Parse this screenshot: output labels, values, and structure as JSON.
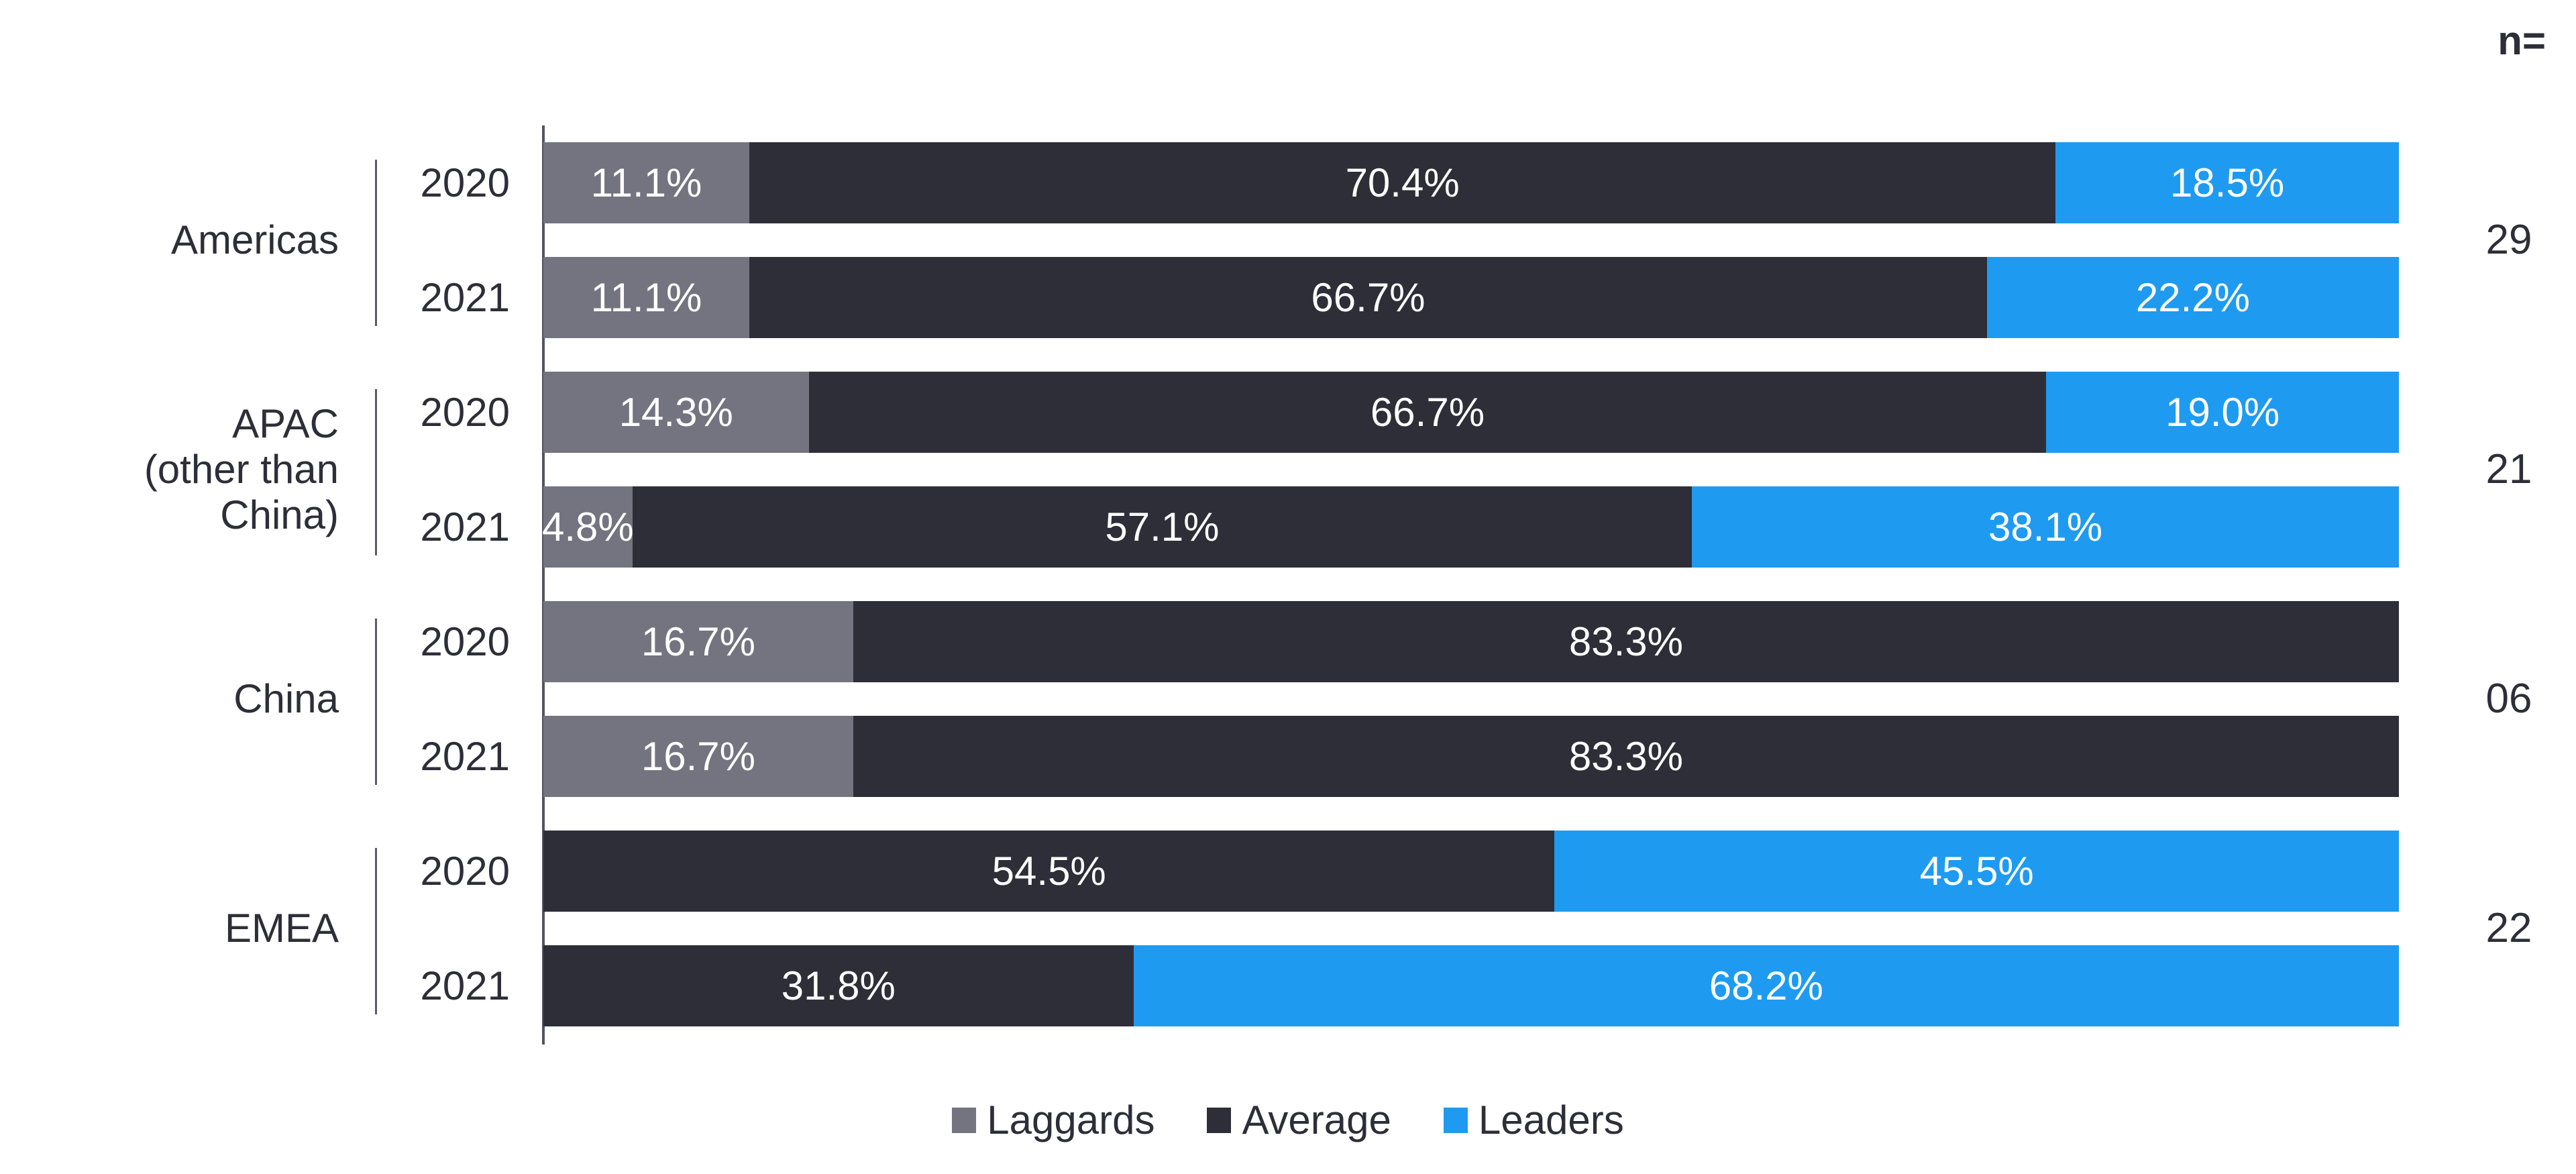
{
  "colors": {
    "laggards": "#747480",
    "average": "#2e2e38",
    "leaders": "#1e9bf0",
    "axis": "#54545f",
    "text": "#2e2e38",
    "bar_label": "#ffffff",
    "background": "#ffffff"
  },
  "chart_data": {
    "type": "bar",
    "orientation": "horizontal",
    "stacked": true,
    "unit": "%",
    "xlim": [
      0,
      100
    ],
    "grid": false,
    "n_column_header": "n=",
    "series": [
      "Laggards",
      "Average",
      "Leaders"
    ],
    "series_colors": {
      "Laggards": "#747480",
      "Average": "#2e2e38",
      "Leaders": "#1e9bf0"
    },
    "legend": [
      {
        "label": "Laggards",
        "color": "#747480"
      },
      {
        "label": "Average",
        "color": "#2e2e38"
      },
      {
        "label": "Leaders",
        "color": "#1e9bf0"
      }
    ],
    "legend_position": "bottom-center",
    "groups": [
      {
        "region": "Americas",
        "region_lines": [
          "Americas"
        ],
        "n": "29",
        "bars": [
          {
            "year": "2020",
            "segments": [
              {
                "series": "Laggards",
                "value": 11.1,
                "label": "11.1%"
              },
              {
                "series": "Average",
                "value": 70.4,
                "label": "70.4%"
              },
              {
                "series": "Leaders",
                "value": 18.5,
                "label": "18.5%"
              }
            ]
          },
          {
            "year": "2021",
            "segments": [
              {
                "series": "Laggards",
                "value": 11.1,
                "label": "11.1%"
              },
              {
                "series": "Average",
                "value": 66.7,
                "label": "66.7%"
              },
              {
                "series": "Leaders",
                "value": 22.2,
                "label": "22.2%"
              }
            ]
          }
        ]
      },
      {
        "region": "APAC (other than China)",
        "region_lines": [
          "APAC",
          "(other than",
          "China)"
        ],
        "n": "21",
        "bars": [
          {
            "year": "2020",
            "segments": [
              {
                "series": "Laggards",
                "value": 14.3,
                "label": "14.3%"
              },
              {
                "series": "Average",
                "value": 66.7,
                "label": "66.7%"
              },
              {
                "series": "Leaders",
                "value": 19.0,
                "label": "19.0%"
              }
            ]
          },
          {
            "year": "2021",
            "segments": [
              {
                "series": "Laggards",
                "value": 4.8,
                "label": "4.8%"
              },
              {
                "series": "Average",
                "value": 57.1,
                "label": "57.1%"
              },
              {
                "series": "Leaders",
                "value": 38.1,
                "label": "38.1%"
              }
            ]
          }
        ]
      },
      {
        "region": "China",
        "region_lines": [
          "China"
        ],
        "n": "06",
        "bars": [
          {
            "year": "2020",
            "segments": [
              {
                "series": "Laggards",
                "value": 16.7,
                "label": "16.7%"
              },
              {
                "series": "Average",
                "value": 83.3,
                "label": "83.3%"
              }
            ]
          },
          {
            "year": "2021",
            "segments": [
              {
                "series": "Laggards",
                "value": 16.7,
                "label": "16.7%"
              },
              {
                "series": "Average",
                "value": 83.3,
                "label": "83.3%"
              }
            ]
          }
        ]
      },
      {
        "region": "EMEA",
        "region_lines": [
          "EMEA"
        ],
        "n": "22",
        "bars": [
          {
            "year": "2020",
            "segments": [
              {
                "series": "Average",
                "value": 54.5,
                "label": "54.5%"
              },
              {
                "series": "Leaders",
                "value": 45.5,
                "label": "45.5%"
              }
            ]
          },
          {
            "year": "2021",
            "segments": [
              {
                "series": "Average",
                "value": 31.8,
                "label": "31.8%"
              },
              {
                "series": "Leaders",
                "value": 68.2,
                "label": "68.2%"
              }
            ]
          }
        ]
      }
    ]
  }
}
